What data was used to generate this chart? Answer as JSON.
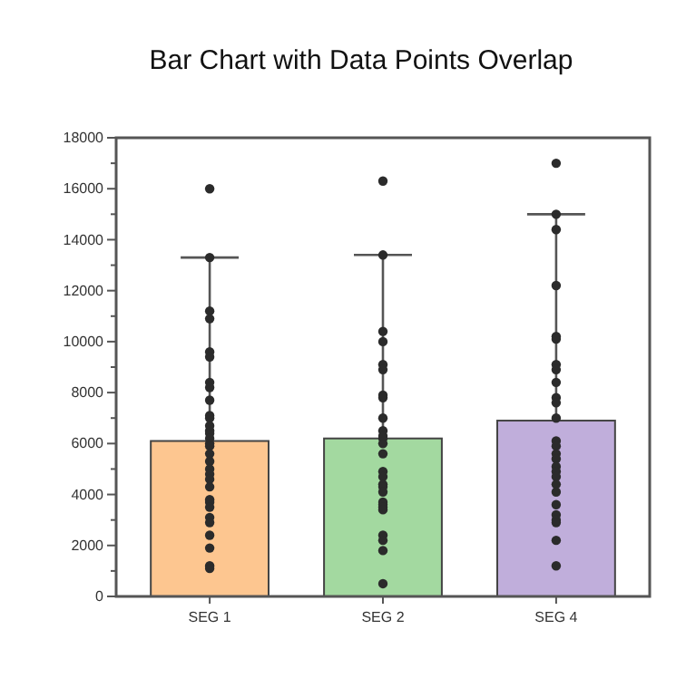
{
  "chart_data": {
    "type": "bar",
    "title": "Bar Chart with Data Points Overlap",
    "categories": [
      "SEG 1",
      "SEG 2",
      "SEG 4"
    ],
    "ylim": [
      0,
      18000
    ],
    "yticks": [
      0,
      {
        "value": 1000,
        "label": null
      },
      2000,
      {
        "value": 3000,
        "label": null
      },
      4000,
      {
        "value": 5000,
        "label": null
      },
      6000,
      {
        "value": 7000,
        "label": null
      },
      8000,
      {
        "value": 9000,
        "label": null
      },
      10000,
      {
        "value": 11000,
        "label": null
      },
      12000,
      {
        "value": 13000,
        "label": null
      },
      14000,
      {
        "value": 15000,
        "label": null
      },
      16000,
      {
        "value": 17000,
        "label": null
      },
      18000
    ],
    "grid": false,
    "series": [
      {
        "values": [
          6100,
          6200,
          6900
        ],
        "colors": [
          "#fdc690",
          "#a3d9a0",
          "#c0aedb"
        ],
        "errors": [
          [
            6100,
            13300
          ],
          [
            6200,
            13400
          ],
          [
            6900,
            15000
          ]
        ]
      },
      {
        "type": "scatter",
        "color": "#2b2b2b",
        "marker": "circle",
        "x": [
          "SEG 1",
          "SEG 1",
          "SEG 1",
          "SEG 1",
          "SEG 1",
          "SEG 1",
          "SEG 1",
          "SEG 1",
          "SEG 1",
          "SEG 1",
          "SEG 1",
          "SEG 1",
          "SEG 1",
          "SEG 1",
          "SEG 1",
          "SEG 1",
          "SEG 1",
          "SEG 1",
          "SEG 1",
          "SEG 1",
          "SEG 1",
          "SEG 1",
          "SEG 1",
          "SEG 1",
          "SEG 1",
          "SEG 1",
          "SEG 1",
          "SEG 1",
          "SEG 1",
          "SEG 1",
          "SEG 1",
          "SEG 1",
          "SEG 2",
          "SEG 2",
          "SEG 2",
          "SEG 2",
          "SEG 2",
          "SEG 2",
          "SEG 2",
          "SEG 2",
          "SEG 2",
          "SEG 2",
          "SEG 2",
          "SEG 2",
          "SEG 2",
          "SEG 2",
          "SEG 2",
          "SEG 2",
          "SEG 2",
          "SEG 2",
          "SEG 2",
          "SEG 2",
          "SEG 2",
          "SEG 2",
          "SEG 2",
          "SEG 2",
          "SEG 2",
          "SEG 2",
          "SEG 2",
          "SEG 4",
          "SEG 4",
          "SEG 4",
          "SEG 4",
          "SEG 4",
          "SEG 4",
          "SEG 4",
          "SEG 4",
          "SEG 4",
          "SEG 4",
          "SEG 4",
          "SEG 4",
          "SEG 4",
          "SEG 4",
          "SEG 4",
          "SEG 4",
          "SEG 4",
          "SEG 4",
          "SEG 4",
          "SEG 4",
          "SEG 4",
          "SEG 4",
          "SEG 4",
          "SEG 4",
          "SEG 4",
          "SEG 4",
          "SEG 4"
        ],
        "values": [
          16000,
          13300,
          11200,
          10900,
          9600,
          9400,
          8400,
          8200,
          7700,
          7100,
          7000,
          6500,
          6400,
          6200,
          6000,
          5900,
          5300,
          5000,
          4800,
          4600,
          4300,
          3800,
          3700,
          3500,
          3100,
          2900,
          2400,
          1900,
          1200,
          1100,
          6700,
          5600,
          16300,
          13400,
          10400,
          10000,
          9100,
          8900,
          7900,
          7800,
          7000,
          6500,
          6200,
          6000,
          5600,
          4900,
          4700,
          4400,
          4300,
          4100,
          3700,
          3600,
          3500,
          3400,
          2400,
          2200,
          1800,
          500,
          6300,
          17000,
          15000,
          14400,
          12200,
          10200,
          10100,
          9100,
          8900,
          8400,
          7800,
          7600,
          7000,
          6100,
          5900,
          5600,
          5400,
          5100,
          4900,
          4700,
          4400,
          4100,
          3600,
          3200,
          3000,
          2900,
          2200,
          1200
        ]
      }
    ]
  }
}
